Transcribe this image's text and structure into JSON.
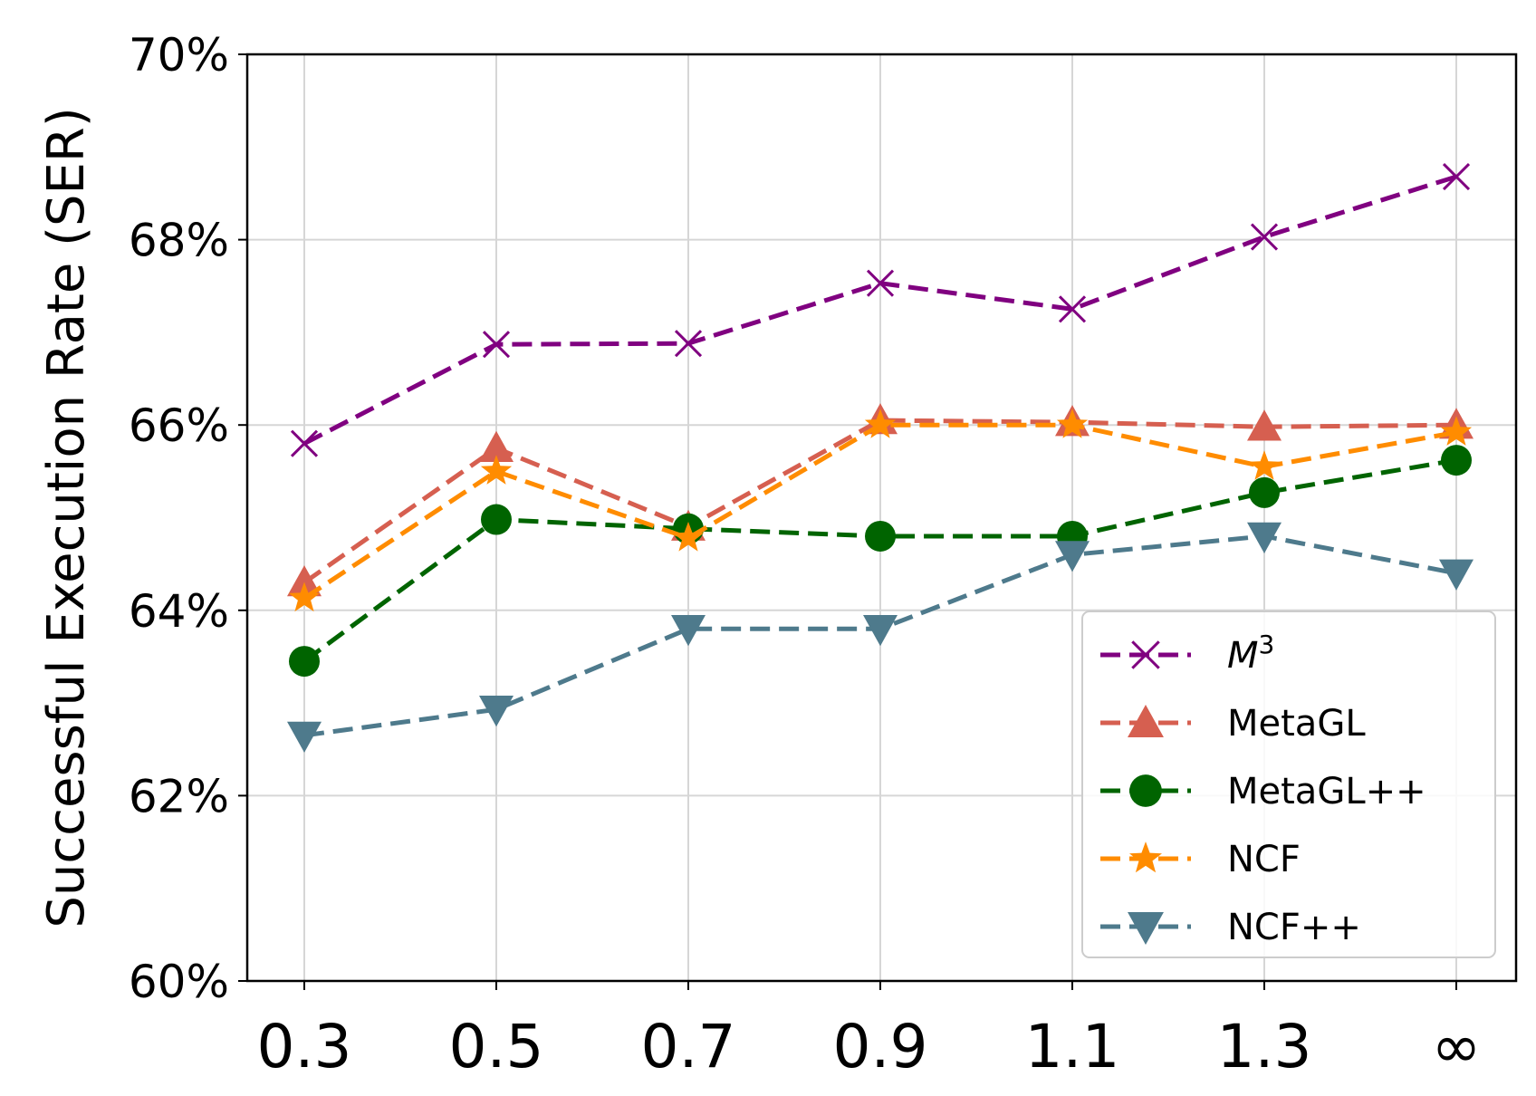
{
  "chart_data": {
    "type": "line",
    "categories": [
      "0.3",
      "0.5",
      "0.7",
      "0.9",
      "1.1",
      "1.3",
      "∞"
    ],
    "ylabel": "Successful Execution Rate (SER)",
    "xlabel": "",
    "ylim": [
      60,
      70
    ],
    "yticks": [
      60,
      62,
      64,
      66,
      68,
      70
    ],
    "ytick_labels": [
      "60%",
      "62%",
      "64%",
      "66%",
      "68%",
      "70%"
    ],
    "grid": true,
    "legend_position": "lower-right",
    "series": [
      {
        "name": "M",
        "name_sup": "3",
        "italic": true,
        "marker": "x",
        "color": "#800080",
        "values": [
          65.8,
          66.87,
          66.88,
          67.53,
          67.25,
          68.03,
          68.68
        ]
      },
      {
        "name": "MetaGL",
        "marker": "triangle-up",
        "color": "#d65f50",
        "values": [
          64.3,
          65.75,
          64.9,
          66.05,
          66.03,
          65.98,
          66.0
        ]
      },
      {
        "name": "MetaGL++",
        "marker": "circle",
        "color": "#006400",
        "values": [
          63.45,
          64.98,
          64.88,
          64.8,
          64.8,
          65.27,
          65.62
        ]
      },
      {
        "name": "NCF",
        "marker": "star",
        "color": "#ff8c00",
        "values": [
          64.13,
          65.5,
          64.78,
          66.0,
          66.0,
          65.55,
          65.92
        ]
      },
      {
        "name": "NCF++",
        "marker": "triangle-down",
        "color": "#4e7a8c",
        "values": [
          62.65,
          62.93,
          63.8,
          63.8,
          64.6,
          64.8,
          64.4
        ]
      }
    ]
  }
}
